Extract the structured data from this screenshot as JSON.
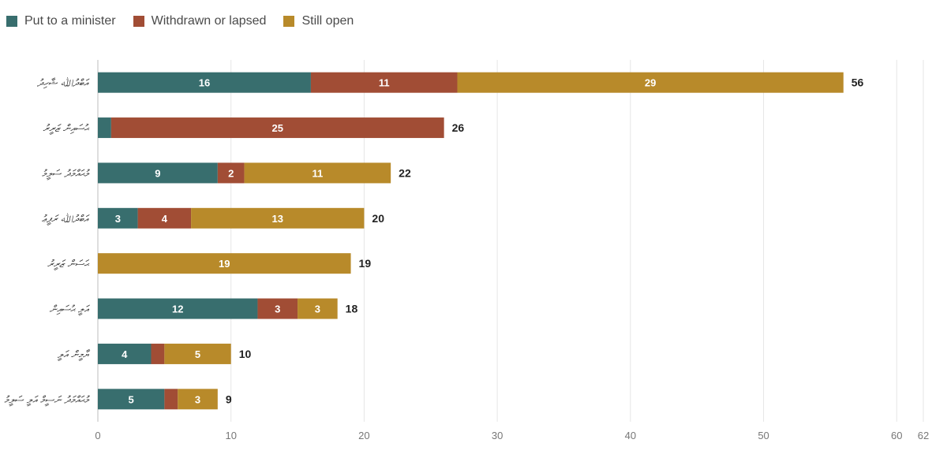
{
  "chart_data": {
    "type": "bar",
    "orientation": "horizontal",
    "stacked": true,
    "title": "",
    "xlabel": "",
    "ylabel": "",
    "xlim": [
      0,
      62
    ],
    "x_ticks": [
      0,
      10,
      20,
      30,
      40,
      50,
      60,
      62
    ],
    "grid": true,
    "legend_position": "top-left",
    "categories": [
      "އަބްދުﷲ ޝާހިދު",
      "ޙުސައިން ޒަރީރު",
      "މުޙައްމަދު ސަލީމު",
      "އަބްދުﷲ ރަފީޢު",
      "ޙަސަން ޒަރީރު",
      "އަލީ ޙުސައިން",
      "ޔާމީން އަލީ",
      "މުޙައްމަދު ނަސީމް އަލީ ސަލީމު"
    ],
    "series": [
      {
        "name": "Put to a minister",
        "color": "#386e6e",
        "values": [
          16,
          1,
          9,
          3,
          0,
          12,
          4,
          5
        ]
      },
      {
        "name": "Withdrawn or lapsed",
        "color": "#a14d35",
        "values": [
          11,
          25,
          2,
          4,
          0,
          3,
          1,
          1
        ]
      },
      {
        "name": "Still open",
        "color": "#b88a2a",
        "values": [
          29,
          0,
          11,
          13,
          19,
          3,
          5,
          3
        ]
      }
    ],
    "totals": [
      56,
      26,
      22,
      20,
      19,
      18,
      10,
      9
    ]
  }
}
